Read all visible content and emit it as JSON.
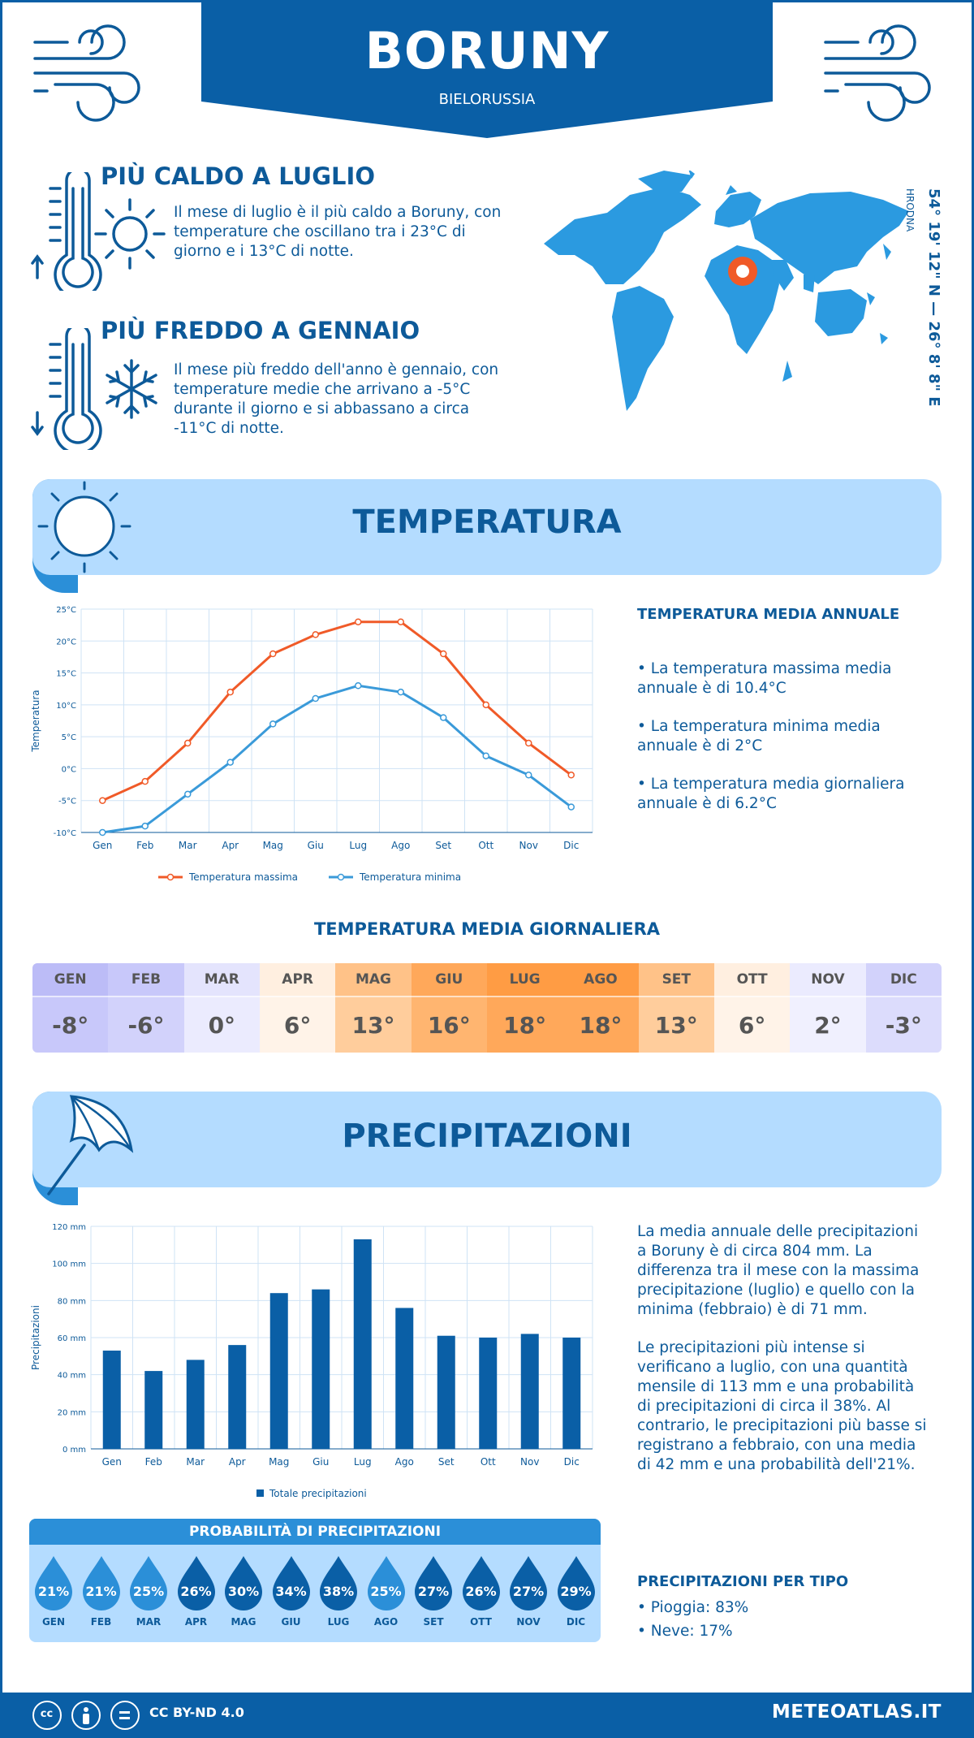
{
  "header": {
    "city": "BORUNY",
    "country": "BIELORUSSIA"
  },
  "facts": {
    "hottest": {
      "title": "PIÙ CALDO A LUGLIO",
      "text": "Il mese di luglio è il più caldo a Boruny, con temperature che oscillano tra i 23°C di giorno e i 13°C di notte."
    },
    "coldest": {
      "title": "PIÙ FREDDO A GENNAIO",
      "text": "Il mese più freddo dell'anno è gennaio, con temperature medie che arrivano a -5°C durante il giorno e si abbassano a circa -11°C di notte."
    }
  },
  "coords": {
    "main": "54° 19' 12\" N — 26° 8' 8\" E",
    "region": "HRODNA"
  },
  "colors": {
    "brand": "#0a5fa6",
    "banner": "#b4dcff",
    "max_line": "#f05a28",
    "min_line": "#3a9ad9",
    "bar": "#0a5fa6"
  },
  "temperature": {
    "section_title": "TEMPERATURA",
    "annual_title": "TEMPERATURA MEDIA ANNUALE",
    "annual_points": [
      "• La temperatura massima media annuale è di 10.4°C",
      "• La temperatura minima media annuale è di 2°C",
      "• La temperatura media giornaliera annuale è di 6.2°C"
    ]
  },
  "daily": {
    "title": "TEMPERATURA MEDIA GIORNALIERA",
    "months": [
      {
        "label": "GEN",
        "value": "-8°",
        "bg": "#bcbcf7",
        "bg2": "#c8c8fa"
      },
      {
        "label": "FEB",
        "value": "-6°",
        "bg": "#c8c8fa",
        "bg2": "#d2d2fb"
      },
      {
        "label": "MAR",
        "value": "0°",
        "bg": "#e4e4fd",
        "bg2": "#ebebfe"
      },
      {
        "label": "APR",
        "value": "6°",
        "bg": "#ffefe0",
        "bg2": "#fff3e8"
      },
      {
        "label": "MAG",
        "value": "13°",
        "bg": "#ffc288",
        "bg2": "#ffcd9c"
      },
      {
        "label": "GIU",
        "value": "16°",
        "bg": "#ffa85a",
        "bg2": "#ffb570"
      },
      {
        "label": "LUG",
        "value": "18°",
        "bg": "#ff9c44",
        "bg2": "#ffa85a"
      },
      {
        "label": "AGO",
        "value": "18°",
        "bg": "#ff9c44",
        "bg2": "#ffa85a"
      },
      {
        "label": "SET",
        "value": "13°",
        "bg": "#ffc288",
        "bg2": "#ffcd9c"
      },
      {
        "label": "OTT",
        "value": "6°",
        "bg": "#ffefe0",
        "bg2": "#fff3e8"
      },
      {
        "label": "NOV",
        "value": "2°",
        "bg": "#ebebfe",
        "bg2": "#f0f0fe"
      },
      {
        "label": "DIC",
        "value": "-3°",
        "bg": "#d2d2fb",
        "bg2": "#dcdcfc"
      }
    ]
  },
  "precip": {
    "section_title": "PRECIPITAZIONI",
    "paragraph1": "La media annuale delle precipitazioni a Boruny è di circa 804 mm. La differenza tra il mese con la massima precipitazione (luglio) e quello con la minima (febbraio) è di 71 mm.",
    "paragraph2": "Le precipitazioni più intense si verificano a luglio, con una quantità mensile di 113 mm e una probabilità di precipitazioni di circa il 38%. Al contrario, le precipitazioni più basse si registrano a febbraio, con una media di 42 mm e una probabilità dell'21%.",
    "prob_title": "PROBABILITÀ DI PRECIPITAZIONI",
    "prob": [
      {
        "month": "GEN",
        "pct": "21%",
        "color": "#2b8fd8"
      },
      {
        "month": "FEB",
        "pct": "21%",
        "color": "#2b8fd8"
      },
      {
        "month": "MAR",
        "pct": "25%",
        "color": "#2b8fd8"
      },
      {
        "month": "APR",
        "pct": "26%",
        "color": "#0a5fa6"
      },
      {
        "month": "MAG",
        "pct": "30%",
        "color": "#0a5fa6"
      },
      {
        "month": "GIU",
        "pct": "34%",
        "color": "#0a5fa6"
      },
      {
        "month": "LUG",
        "pct": "38%",
        "color": "#0a5fa6"
      },
      {
        "month": "AGO",
        "pct": "25%",
        "color": "#2b8fd8"
      },
      {
        "month": "SET",
        "pct": "27%",
        "color": "#0a5fa6"
      },
      {
        "month": "OTT",
        "pct": "26%",
        "color": "#0a5fa6"
      },
      {
        "month": "NOV",
        "pct": "27%",
        "color": "#0a5fa6"
      },
      {
        "month": "DIC",
        "pct": "29%",
        "color": "#0a5fa6"
      }
    ],
    "type_title": "PRECIPITAZIONI PER TIPO",
    "types": [
      "• Pioggia: 83%",
      "• Neve: 17%"
    ]
  },
  "footer": {
    "license": "CC BY-ND 4.0",
    "site": "METEOATLAS.IT"
  },
  "chart_data": [
    {
      "type": "line",
      "categories": [
        "Gen",
        "Feb",
        "Mar",
        "Apr",
        "Mag",
        "Giu",
        "Lug",
        "Ago",
        "Set",
        "Ott",
        "Nov",
        "Dic"
      ],
      "series": [
        {
          "name": "Temperatura massima",
          "values": [
            -5,
            -2,
            4,
            12,
            18,
            21,
            23,
            23,
            18,
            10,
            4,
            -1
          ]
        },
        {
          "name": "Temperatura minima",
          "values": [
            -10,
            -9,
            -4,
            1,
            7,
            11,
            13,
            12,
            8,
            2,
            -1,
            -6
          ]
        }
      ],
      "ylabel": "Temperatura",
      "yticks": [
        "-10°C",
        "-5°C",
        "0°C",
        "5°C",
        "10°C",
        "15°C",
        "20°C",
        "25°C"
      ],
      "ylim": [
        -10,
        25
      ],
      "grid": true,
      "legend": "bottom"
    },
    {
      "type": "bar",
      "categories": [
        "Gen",
        "Feb",
        "Mar",
        "Apr",
        "Mag",
        "Giu",
        "Lug",
        "Ago",
        "Set",
        "Ott",
        "Nov",
        "Dic"
      ],
      "series": [
        {
          "name": "Totale precipitazioni",
          "values": [
            53,
            42,
            48,
            56,
            84,
            86,
            113,
            76,
            61,
            60,
            62,
            60
          ]
        }
      ],
      "ylabel": "Precipitazioni",
      "yticks": [
        "0 mm",
        "20 mm",
        "40 mm",
        "60 mm",
        "80 mm",
        "100 mm",
        "120 mm"
      ],
      "ylim": [
        0,
        120
      ],
      "grid": true,
      "legend": "bottom"
    }
  ]
}
